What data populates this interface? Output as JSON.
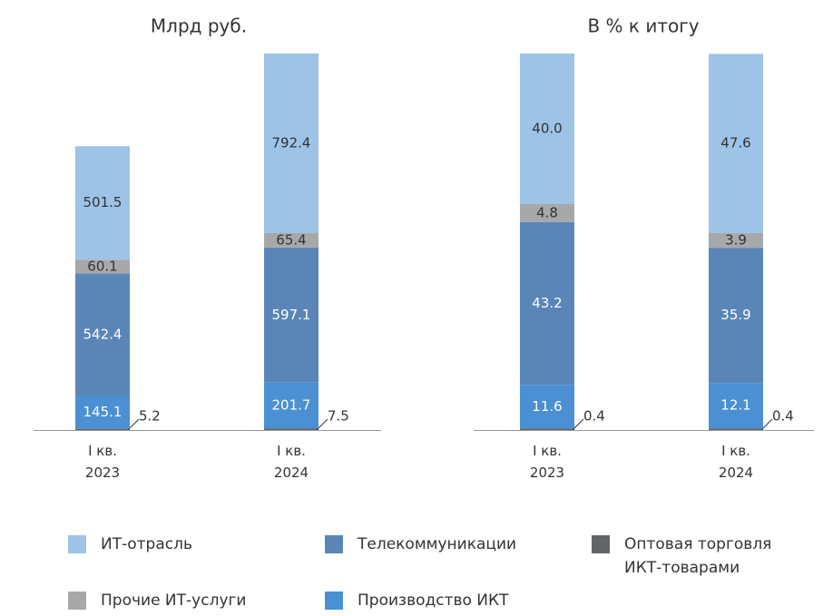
{
  "chart_data": [
    {
      "type": "bar",
      "stacked": true,
      "title": "Млрд руб.",
      "categories": [
        "I кв.\n2023",
        "I кв.\n2024"
      ],
      "series": [
        {
          "name": "ИТ-отрасль",
          "color": "#9dc3e6",
          "values": [
            501.5,
            792.4
          ]
        },
        {
          "name": "Телекоммуникации",
          "color": "#5a86b7",
          "values": [
            542.4,
            597.1
          ]
        },
        {
          "name": "Оптовая торговля\nИКТ-товарами",
          "color": "#636466",
          "values": [
            5.2,
            7.5
          ]
        },
        {
          "name": "Прочие ИТ-услуги",
          "color": "#a7a8aa",
          "values": [
            60.1,
            65.4
          ]
        },
        {
          "name": "Производство ИКТ",
          "color": "#4a90d2",
          "values": [
            145.1,
            201.7
          ]
        }
      ]
    },
    {
      "type": "bar",
      "stacked": true,
      "title": "В % к итогу",
      "categories": [
        "I кв.\n2023",
        "I кв.\n2024"
      ],
      "series": [
        {
          "name": "ИТ-отрасль",
          "color": "#9dc3e6",
          "values": [
            40,
            47.6
          ],
          "value_labels": [
            "40.0",
            "47.6"
          ]
        },
        {
          "name": "Телекоммуникации",
          "color": "#5a86b7",
          "values": [
            43.2,
            35.9
          ]
        },
        {
          "name": "Оптовая торговля\nИКТ-товарами",
          "color": "#636466",
          "values": [
            0.4,
            0.4
          ]
        },
        {
          "name": "Прочие ИТ-услуги",
          "color": "#a7a8aa",
          "values": [
            4.8,
            3.9
          ]
        },
        {
          "name": "Производство ИКТ",
          "color": "#4a90d2",
          "values": [
            11.6,
            12.1
          ]
        }
      ]
    }
  ]
}
